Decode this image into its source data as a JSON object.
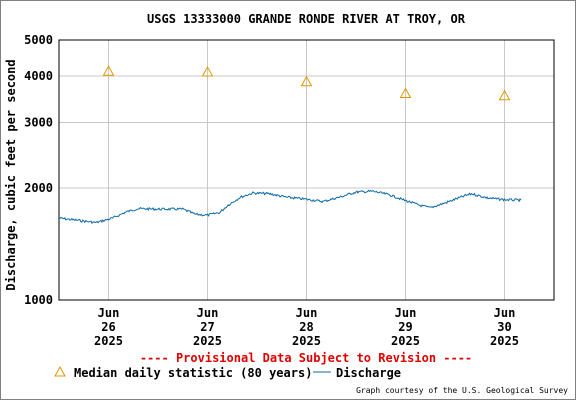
{
  "chart_data": {
    "type": "line",
    "title": "USGS 13333000 GRANDE RONDE RIVER AT TROY, OR",
    "ylabel": "Discharge, cubic feet per second",
    "xlabel": "",
    "yscale": "log",
    "ylim": [
      1000,
      5000
    ],
    "yticks": [
      {
        "value": 1000,
        "label": "1000"
      },
      {
        "value": 2000,
        "label": "2000"
      },
      {
        "value": 3000,
        "label": "3000"
      },
      {
        "value": 4000,
        "label": "4000"
      },
      {
        "value": 5000,
        "label": "5000"
      }
    ],
    "xlim": [
      "2025-06-25 12:00",
      "2025-06-30 12:00"
    ],
    "xticks": [
      {
        "value": "2025-06-26",
        "lines": [
          "Jun",
          "26",
          "2025"
        ]
      },
      {
        "value": "2025-06-27",
        "lines": [
          "Jun",
          "27",
          "2025"
        ]
      },
      {
        "value": "2025-06-28",
        "lines": [
          "Jun",
          "28",
          "2025"
        ]
      },
      {
        "value": "2025-06-29",
        "lines": [
          "Jun",
          "29",
          "2025"
        ]
      },
      {
        "value": "2025-06-30",
        "lines": [
          "Jun",
          "30",
          "2025"
        ]
      }
    ],
    "grid": true,
    "colors": {
      "discharge": "#0d6aa8",
      "median": "#e69500",
      "warning": "#e00000"
    },
    "median": {
      "name": "Median daily statistic (80 years)",
      "points": [
        {
          "x": "2025-06-26",
          "y": 4120
        },
        {
          "x": "2025-06-27",
          "y": 4100
        },
        {
          "x": "2025-06-28",
          "y": 3860
        },
        {
          "x": "2025-06-29",
          "y": 3590
        },
        {
          "x": "2025-06-30",
          "y": 3540
        }
      ]
    },
    "discharge": {
      "name": "Discharge",
      "points": [
        {
          "x": "2025-06-25 12:00",
          "y": 1660
        },
        {
          "x": "2025-06-25 18:00",
          "y": 1630
        },
        {
          "x": "2025-06-25 21:00",
          "y": 1615
        },
        {
          "x": "2025-06-26 01:00",
          "y": 1660
        },
        {
          "x": "2025-06-26 04:00",
          "y": 1720
        },
        {
          "x": "2025-06-26 07:00",
          "y": 1760
        },
        {
          "x": "2025-06-26 12:00",
          "y": 1755
        },
        {
          "x": "2025-06-26 18:00",
          "y": 1755
        },
        {
          "x": "2025-06-26 21:00",
          "y": 1700
        },
        {
          "x": "2025-06-27 00:00",
          "y": 1690
        },
        {
          "x": "2025-06-27 03:00",
          "y": 1720
        },
        {
          "x": "2025-06-27 05:00",
          "y": 1800
        },
        {
          "x": "2025-06-27 08:00",
          "y": 1890
        },
        {
          "x": "2025-06-27 11:00",
          "y": 1940
        },
        {
          "x": "2025-06-27 15:00",
          "y": 1930
        },
        {
          "x": "2025-06-27 19:00",
          "y": 1890
        },
        {
          "x": "2025-06-28 00:00",
          "y": 1865
        },
        {
          "x": "2025-06-28 04:00",
          "y": 1840
        },
        {
          "x": "2025-06-28 08:00",
          "y": 1890
        },
        {
          "x": "2025-06-28 12:00",
          "y": 1950
        },
        {
          "x": "2025-06-28 16:00",
          "y": 1960
        },
        {
          "x": "2025-06-28 20:00",
          "y": 1920
        },
        {
          "x": "2025-06-29 00:00",
          "y": 1850
        },
        {
          "x": "2025-06-29 04:00",
          "y": 1790
        },
        {
          "x": "2025-06-29 06:00",
          "y": 1770
        },
        {
          "x": "2025-06-29 10:00",
          "y": 1830
        },
        {
          "x": "2025-06-29 14:00",
          "y": 1900
        },
        {
          "x": "2025-06-29 16:00",
          "y": 1930
        },
        {
          "x": "2025-06-29 20:00",
          "y": 1880
        },
        {
          "x": "2025-06-30 00:00",
          "y": 1860
        },
        {
          "x": "2025-06-30 04:00",
          "y": 1855
        }
      ]
    }
  },
  "footer": {
    "provisional": "---- Provisional Data Subject to Revision ----",
    "legend_median_label": "Median daily statistic (80 years)",
    "legend_discharge_label": "Discharge",
    "credit": "Graph courtesy of the U.S. Geological Survey"
  }
}
